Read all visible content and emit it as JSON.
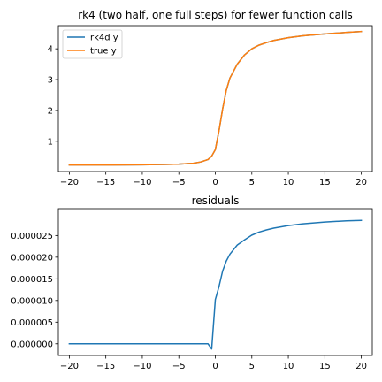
{
  "chart_data": [
    {
      "type": "line",
      "title": "rk4 (two half, one full steps) for fewer function calls",
      "xlabel": "",
      "ylabel": "",
      "xlim": [
        -21.5,
        21.5
      ],
      "ylim": [
        0.02,
        4.75
      ],
      "xticks": [
        -20,
        -15,
        -10,
        -5,
        0,
        5,
        10,
        15,
        20
      ],
      "xtick_labels": [
        "−20",
        "−15",
        "−10",
        "−5",
        "0",
        "5",
        "10",
        "15",
        "20"
      ],
      "yticks": [
        1,
        2,
        3,
        4
      ],
      "ytick_labels": [
        "1",
        "2",
        "3",
        "4"
      ],
      "grid": false,
      "legend": "top-left",
      "series": [
        {
          "name": "rk4d y",
          "color": "#1f77b4",
          "x": [
            -20,
            -15,
            -10,
            -7,
            -5,
            -3,
            -2,
            -1,
            -0.5,
            0,
            0.5,
            1,
            1.5,
            2,
            3,
            4,
            5,
            6,
            7,
            8,
            10,
            12,
            15,
            18,
            20
          ],
          "y": [
            0.23,
            0.23,
            0.24,
            0.25,
            0.26,
            0.29,
            0.33,
            0.41,
            0.52,
            0.73,
            1.34,
            2.05,
            2.65,
            3.05,
            3.5,
            3.8,
            4.0,
            4.12,
            4.2,
            4.27,
            4.36,
            4.42,
            4.48,
            4.53,
            4.56
          ]
        },
        {
          "name": "true y",
          "color": "#ff7f0e",
          "x": [
            -20,
            -15,
            -10,
            -7,
            -5,
            -3,
            -2,
            -1,
            -0.5,
            0,
            0.5,
            1,
            1.5,
            2,
            3,
            4,
            5,
            6,
            7,
            8,
            10,
            12,
            15,
            18,
            20
          ],
          "y": [
            0.23,
            0.23,
            0.24,
            0.25,
            0.26,
            0.29,
            0.33,
            0.41,
            0.52,
            0.73,
            1.34,
            2.05,
            2.65,
            3.05,
            3.5,
            3.8,
            4.0,
            4.12,
            4.2,
            4.27,
            4.36,
            4.42,
            4.48,
            4.53,
            4.56
          ]
        }
      ]
    },
    {
      "type": "line",
      "title": "residuals",
      "xlabel": "",
      "ylabel": "",
      "xlim": [
        -21.5,
        21.5
      ],
      "ylim": [
        -2.7e-06,
        3.12e-05
      ],
      "xticks": [
        -20,
        -15,
        -10,
        -5,
        0,
        5,
        10,
        15,
        20
      ],
      "xtick_labels": [
        "−20",
        "−15",
        "−10",
        "−5",
        "0",
        "5",
        "10",
        "15",
        "20"
      ],
      "yticks": [
        0,
        5e-06,
        1e-05,
        1.5e-05,
        2e-05,
        2.5e-05
      ],
      "ytick_labels": [
        "0.000000",
        "0.000005",
        "0.000010",
        "0.000015",
        "0.000020",
        "0.000025"
      ],
      "grid": false,
      "series": [
        {
          "name": "",
          "color": "#1f77b4",
          "x": [
            -20,
            -15,
            -10,
            -5,
            -1,
            -0.5,
            0,
            0.5,
            1,
            1.5,
            2,
            3,
            4,
            5,
            6,
            7,
            8,
            10,
            12,
            15,
            18,
            20
          ],
          "y": [
            0,
            0,
            0,
            0,
            0,
            -1.2e-06,
            1.02e-05,
            1.32e-05,
            1.68e-05,
            1.91e-05,
            2.07e-05,
            2.28e-05,
            2.4e-05,
            2.51e-05,
            2.58e-05,
            2.63e-05,
            2.67e-05,
            2.73e-05,
            2.77e-05,
            2.81e-05,
            2.84e-05,
            2.85e-05
          ]
        }
      ]
    }
  ]
}
